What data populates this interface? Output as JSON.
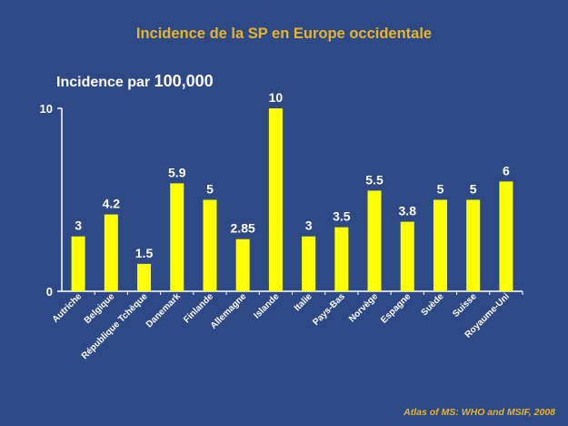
{
  "header": {
    "title": "Incidence de la SP en Europe occidentale",
    "ylabel_part1": "Incidence par",
    "ylabel_part2": "100,000",
    "source": "Atlas of MS: WHO and MSIF, 2008"
  },
  "colors": {
    "background": "#2E4A86",
    "bar": "#FFFF00",
    "title": "#E6B42A",
    "text": "#FFFFFF"
  },
  "chart_data": {
    "type": "bar",
    "title": "Incidence de la SP en Europe occidentale",
    "ylabel": "Incidence par 100,000",
    "xlabel": "",
    "ylim": [
      0,
      10
    ],
    "yticks": [
      0,
      10
    ],
    "grid": false,
    "categories": [
      "Autriche",
      "Belgique",
      "République Tchèque",
      "Danemark",
      "Finlande",
      "Allemagne",
      "Islande",
      "Italie",
      "Pays-Bas",
      "Norvège",
      "Espagne",
      "Suède",
      "Suisse",
      "Royaume-Uni"
    ],
    "values": [
      3,
      4.2,
      1.5,
      5.9,
      5,
      2.85,
      10,
      3,
      3.5,
      5.5,
      3.8,
      5,
      5,
      6
    ],
    "value_labels": [
      "3",
      "4.2",
      "1.5",
      "5.9",
      "5",
      "2.85",
      "10",
      "3",
      "3.5",
      "5.5",
      "3.8",
      "5",
      "5",
      "6"
    ]
  }
}
